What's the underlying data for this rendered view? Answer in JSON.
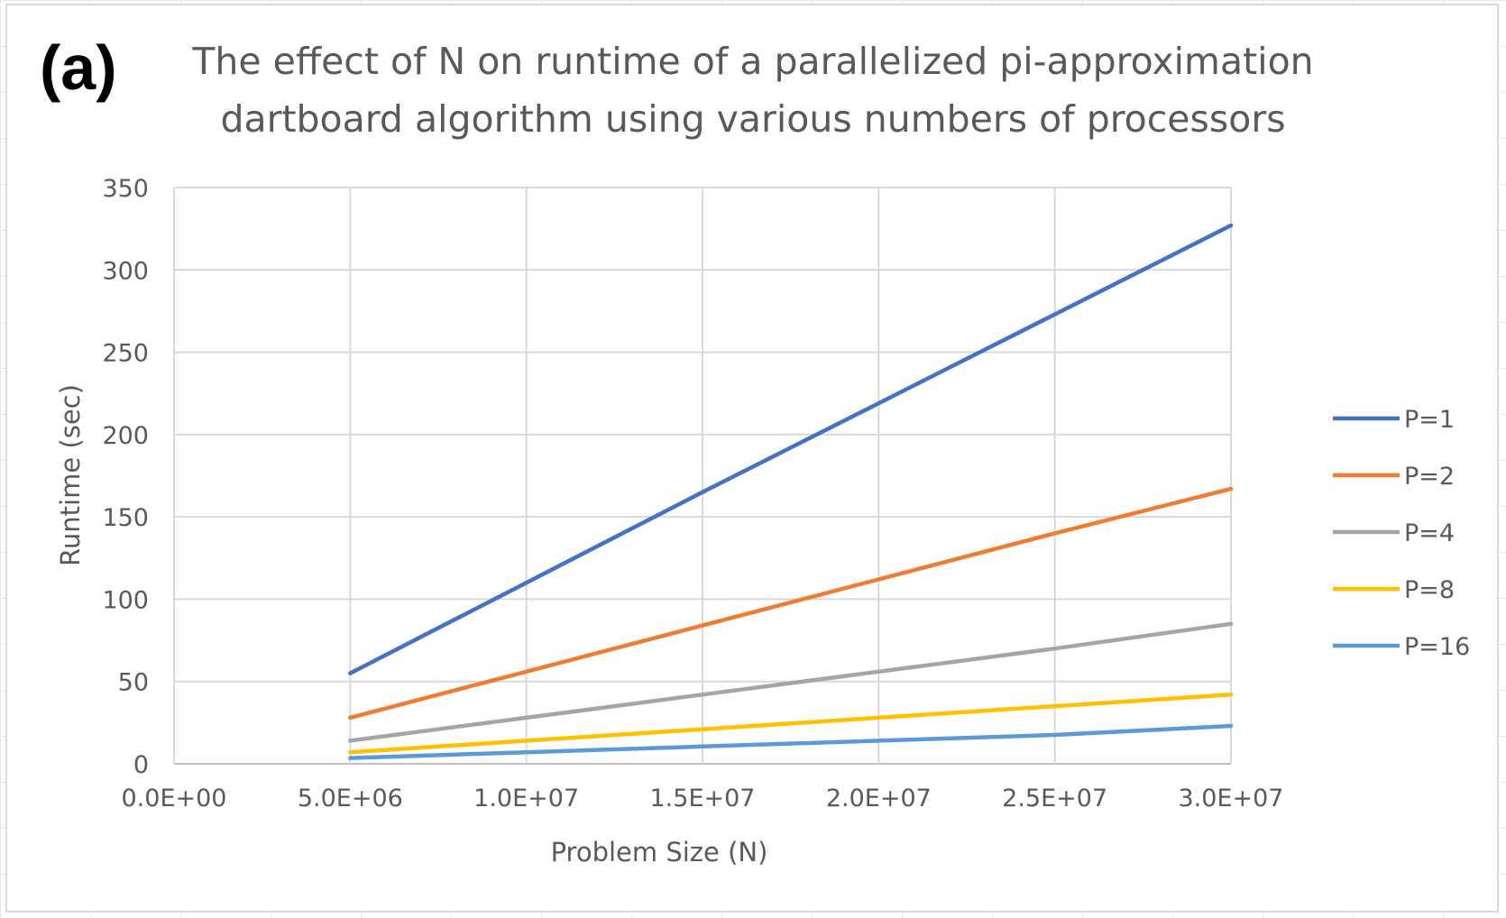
{
  "panel_label": "(a)",
  "chart_data": {
    "type": "line",
    "title_lines": [
      "The effect of N on runtime of a parallelized pi-approximation",
      "dartboard algorithm using various numbers of processors"
    ],
    "xlabel": "Problem Size (N)",
    "ylabel": "Runtime (sec)",
    "xlim": [
      0,
      30000000
    ],
    "ylim": [
      0,
      350
    ],
    "x_ticks": [
      "0.0E+00",
      "5.0E+06",
      "1.0E+07",
      "1.5E+07",
      "2.0E+07",
      "2.5E+07",
      "3.0E+07"
    ],
    "x_tick_values": [
      0,
      5000000,
      10000000,
      15000000,
      20000000,
      25000000,
      30000000
    ],
    "y_ticks": [
      "0",
      "50",
      "100",
      "150",
      "200",
      "250",
      "300",
      "350"
    ],
    "y_tick_values": [
      0,
      50,
      100,
      150,
      200,
      250,
      300,
      350
    ],
    "grid": true,
    "legend_position": "right",
    "x": [
      5000000,
      10000000,
      15000000,
      20000000,
      25000000,
      30000000
    ],
    "series": [
      {
        "name": "P=1",
        "color": "#4472c4",
        "values": [
          55,
          110,
          165,
          219,
          273,
          327
        ]
      },
      {
        "name": "P=2",
        "color": "#ed7d31",
        "values": [
          28,
          56,
          84,
          112,
          140,
          167
        ]
      },
      {
        "name": "P=4",
        "color": "#a5a5a5",
        "values": [
          14,
          28,
          42,
          56,
          70,
          85
        ]
      },
      {
        "name": "P=8",
        "color": "#ffc000",
        "values": [
          7,
          14,
          21,
          28,
          35,
          42
        ]
      },
      {
        "name": "P=16",
        "color": "#5b9bd5",
        "values": [
          3.5,
          7,
          10.5,
          14,
          17.5,
          23
        ]
      }
    ]
  }
}
